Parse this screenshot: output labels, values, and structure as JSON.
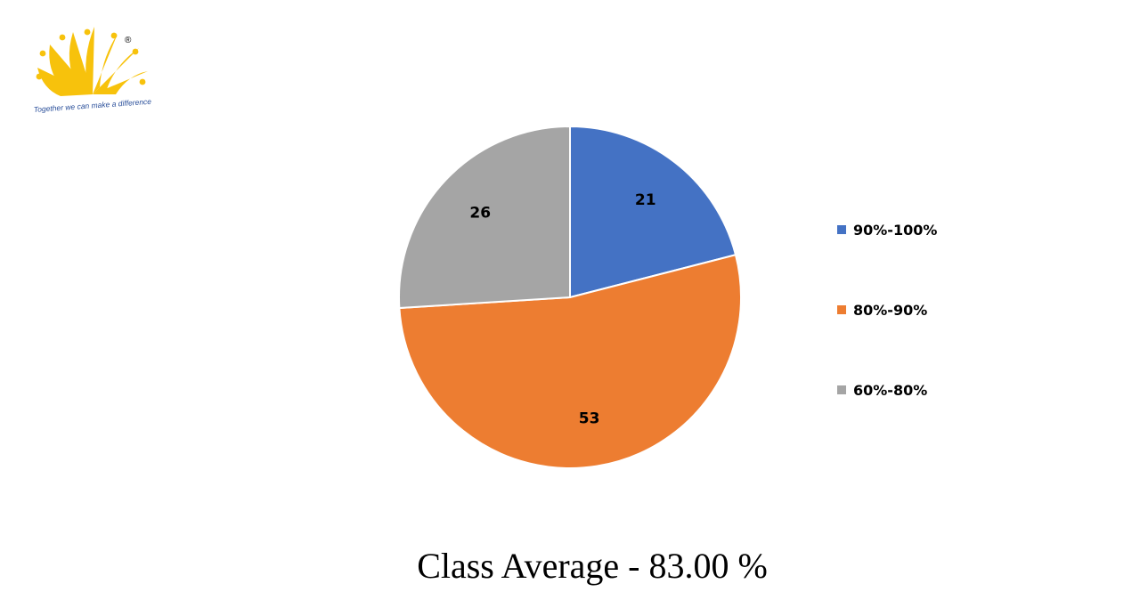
{
  "logo": {
    "tagline": "Together we can make a difference",
    "registered_mark": "®",
    "colors": {
      "primary": "#f7c20c",
      "text": "#2a4f9a"
    }
  },
  "chart_data": {
    "type": "pie",
    "title": "",
    "categories": [
      "90%-100%",
      "80%-90%",
      "60%-80%"
    ],
    "values": [
      21,
      53,
      26
    ],
    "colors": [
      "#4472c4",
      "#ed7d31",
      "#a5a5a5"
    ],
    "legend": "right",
    "start_angle_deg": 0,
    "direction": "clockwise"
  },
  "caption": "Class Average - 83.00 %"
}
